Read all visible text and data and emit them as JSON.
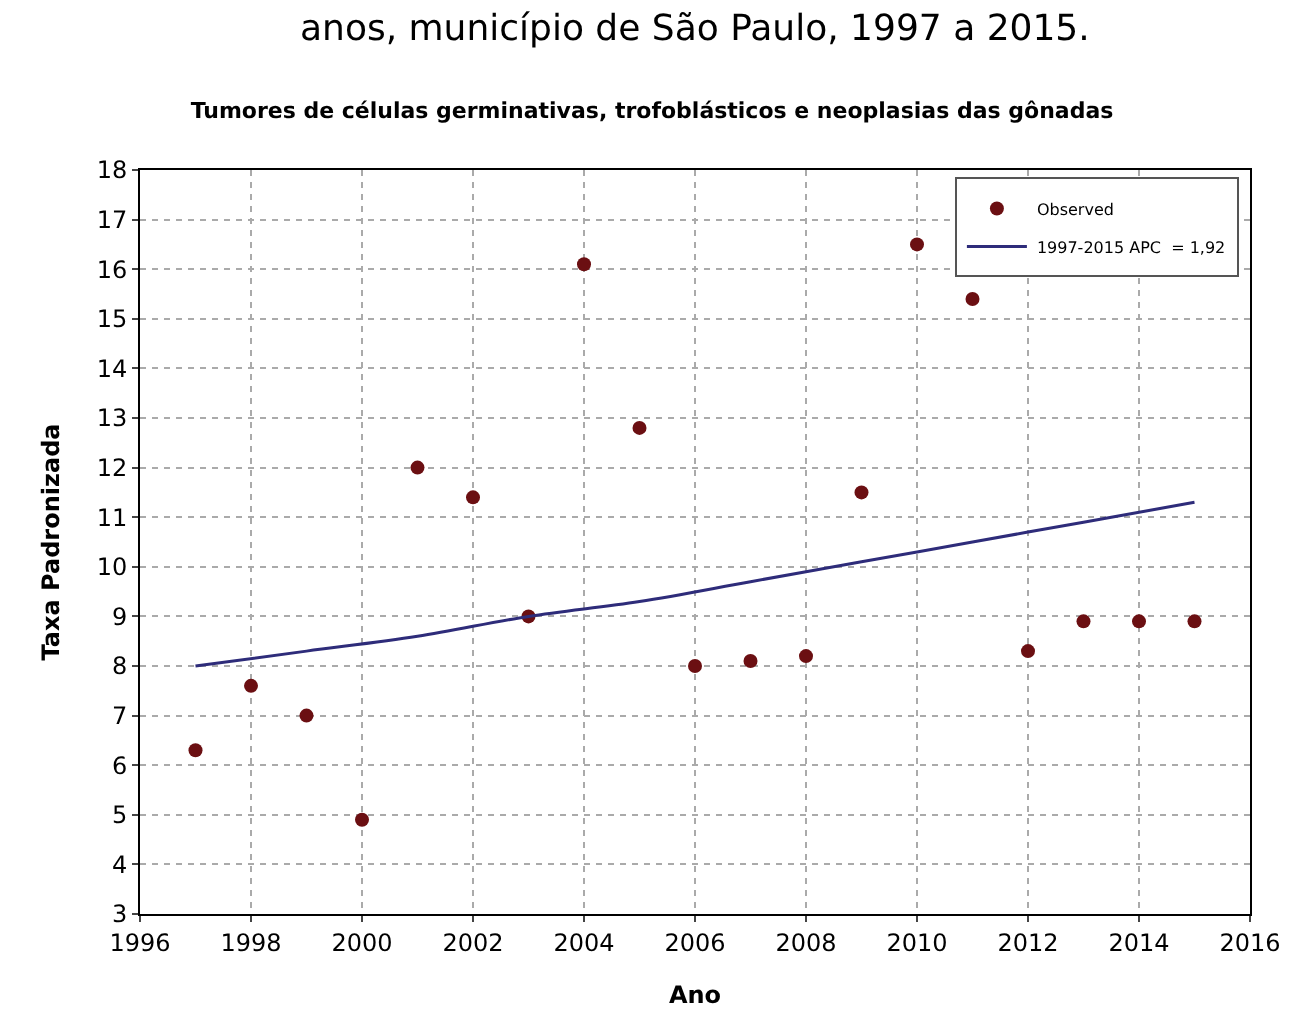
{
  "chart_data": {
    "type": "scatter",
    "title": "Tumores de células germinativas, trofoblásticos e neoplasias das gônadas",
    "xlabel": "Ano",
    "ylabel": "Taxa Padronizada",
    "annotations": [
      "anos, município de São Paulo, 1997 a 2015."
    ],
    "x": [
      1997,
      1998,
      1999,
      2000,
      2001,
      2002,
      2003,
      2004,
      2005,
      2006,
      2007,
      2008,
      2009,
      2010,
      2011,
      2012,
      2013,
      2014,
      2015
    ],
    "series": [
      {
        "name": "Observed",
        "color": "#6b0f12",
        "marker": "circle",
        "values": [
          6.3,
          7.6,
          7.0,
          4.9,
          12.0,
          11.4,
          9.0,
          16.1,
          12.8,
          8.0,
          8.1,
          8.2,
          11.5,
          16.5,
          15.4,
          8.3,
          8.9,
          8.9,
          8.9
        ]
      },
      {
        "name": "1997-2015 APC  = 1,92",
        "type": "line",
        "color": "#2e2c7a",
        "marker": "none",
        "line_style": "solid",
        "x": [
          1997,
          1999,
          2001,
          2003,
          2005,
          2007,
          2009,
          2011,
          2013,
          2015
        ],
        "values": [
          8.0,
          8.3,
          8.6,
          9.0,
          9.3,
          9.7,
          10.1,
          10.5,
          10.9,
          11.3
        ]
      }
    ],
    "xlim": [
      1996,
      2016
    ],
    "xticks": [
      1996,
      1998,
      2000,
      2002,
      2004,
      2006,
      2008,
      2010,
      2012,
      2014,
      2016
    ],
    "ylim": [
      3,
      18
    ],
    "yticks": [
      3,
      4,
      5,
      6,
      7,
      8,
      9,
      10,
      11,
      12,
      13,
      14,
      15,
      16,
      17,
      18
    ],
    "grid": true,
    "legend": "top right"
  }
}
